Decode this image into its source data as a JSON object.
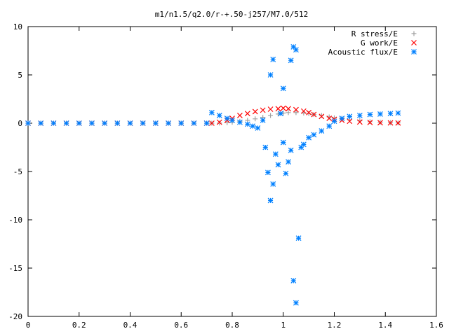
{
  "chart_data": {
    "type": "scatter",
    "title": "m1/n1.5/q2.0/r-+.50-j257/M7.0/512",
    "xlabel": "",
    "ylabel": "",
    "xlim": [
      0,
      1.6
    ],
    "ylim": [
      -20,
      10
    ],
    "grid": false,
    "legend_position": "top-right",
    "xticks": [
      0,
      0.2,
      0.4,
      0.6,
      0.8,
      1,
      1.2,
      1.4,
      1.6
    ],
    "xtick_labels": [
      "0",
      "0.2",
      "0.4",
      "0.6",
      "0.8",
      "1",
      "1.2",
      "1.4",
      "1.6"
    ],
    "yticks": [
      10,
      5,
      0,
      -5,
      -10,
      -15,
      -20
    ],
    "ytick_labels": [
      "10",
      "5",
      "0",
      "-5",
      "-10",
      "-15",
      "-20"
    ],
    "series": [
      {
        "name": "R stress/E",
        "marker": "plus",
        "color": "#a0a0a0",
        "x": [
          0,
          0.05,
          0.1,
          0.15,
          0.2,
          0.25,
          0.3,
          0.35,
          0.4,
          0.45,
          0.5,
          0.55,
          0.6,
          0.65,
          0.7,
          0.72,
          0.75,
          0.78,
          0.8,
          0.83,
          0.86,
          0.89,
          0.92,
          0.95,
          0.98,
          1.0,
          1.02,
          1.05,
          1.08,
          1.1,
          1.12,
          1.15,
          1.18,
          1.2,
          1.23,
          1.26,
          1.3,
          1.34,
          1.38,
          1.42,
          1.45
        ],
        "y": [
          0,
          0,
          0,
          0,
          0,
          0,
          0,
          0,
          0,
          0,
          0,
          0,
          0,
          0,
          0,
          0,
          0.02,
          0.05,
          0.1,
          0.2,
          0.3,
          0.45,
          0.6,
          0.8,
          0.95,
          1.05,
          1.1,
          1.1,
          1.05,
          1.0,
          0.9,
          0.8,
          0.65,
          0.55,
          0.45,
          0.35,
          0.25,
          0.15,
          0.1,
          0.05,
          0.03
        ]
      },
      {
        "name": "G work/E",
        "marker": "cross",
        "color": "#ff0000",
        "x": [
          0,
          0.05,
          0.1,
          0.15,
          0.2,
          0.25,
          0.3,
          0.35,
          0.4,
          0.45,
          0.5,
          0.55,
          0.6,
          0.65,
          0.7,
          0.72,
          0.75,
          0.78,
          0.8,
          0.83,
          0.86,
          0.89,
          0.92,
          0.95,
          0.98,
          1.0,
          1.02,
          1.05,
          1.08,
          1.1,
          1.12,
          1.15,
          1.18,
          1.2,
          1.23,
          1.26,
          1.3,
          1.34,
          1.38,
          1.42,
          1.45
        ],
        "y": [
          0,
          0,
          0,
          0,
          0,
          0,
          0,
          0,
          0,
          0,
          0,
          0,
          0,
          0,
          0,
          0,
          0.1,
          0.3,
          0.5,
          0.8,
          1.0,
          1.2,
          1.35,
          1.45,
          1.5,
          1.55,
          1.5,
          1.4,
          1.25,
          1.1,
          0.9,
          0.7,
          0.5,
          0.4,
          0.3,
          0.2,
          0.12,
          0.08,
          0.05,
          0.03,
          0.02
        ]
      },
      {
        "name": "Acoustic flux/E",
        "marker": "star",
        "color": "#0080ff",
        "x": [
          0,
          0.05,
          0.1,
          0.15,
          0.2,
          0.25,
          0.3,
          0.35,
          0.4,
          0.45,
          0.5,
          0.55,
          0.6,
          0.65,
          0.7,
          0.72,
          0.75,
          0.78,
          0.8,
          0.83,
          0.86,
          0.88,
          0.9,
          0.92,
          0.93,
          0.94,
          0.95,
          0.95,
          0.96,
          0.96,
          0.97,
          0.98,
          0.99,
          1.0,
          1.0,
          1.01,
          1.02,
          1.03,
          1.03,
          1.04,
          1.04,
          1.05,
          1.05,
          1.06,
          1.07,
          1.08,
          1.1,
          1.12,
          1.15,
          1.18,
          1.2,
          1.23,
          1.26,
          1.3,
          1.34,
          1.38,
          1.42,
          1.45
        ],
        "y": [
          0,
          0,
          0,
          0,
          0,
          0,
          0,
          0,
          0,
          0,
          0,
          0,
          0,
          0,
          0,
          1.1,
          0.8,
          0.5,
          0.3,
          0.1,
          -0.1,
          -0.3,
          -0.5,
          0.3,
          -2.5,
          -5.1,
          -8.0,
          5.0,
          -6.3,
          6.6,
          -3.2,
          -4.3,
          1.0,
          -2.0,
          3.6,
          -5.2,
          -4.0,
          6.5,
          -2.8,
          7.9,
          -16.3,
          -18.6,
          7.6,
          -11.9,
          -2.5,
          -2.2,
          -1.5,
          -1.2,
          -0.8,
          -0.3,
          0.2,
          0.5,
          0.7,
          0.8,
          0.9,
          0.95,
          1.0,
          1.05
        ]
      }
    ]
  }
}
